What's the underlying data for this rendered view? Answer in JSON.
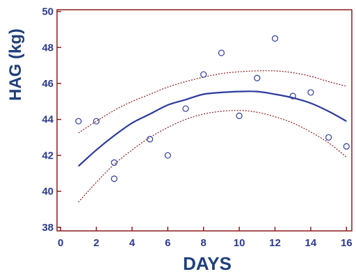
{
  "chart_data": {
    "type": "scatter",
    "xlabel": "DAYS",
    "ylabel": "HAG (kg)",
    "xlim": [
      -0.2,
      16.3
    ],
    "ylim": [
      37.8,
      50.1
    ],
    "xticks": [
      0,
      2,
      4,
      6,
      8,
      10,
      12,
      14,
      16
    ],
    "yticks": [
      38,
      40,
      42,
      44,
      46,
      48,
      50
    ],
    "grid": false,
    "colors": {
      "frame": "#8b1a1a",
      "points": "#2b3a9c",
      "fit": "#2b3a9c",
      "band": "#8b1a1a",
      "labels": "#2b3a8c",
      "title": "#1f3f7a"
    },
    "points": [
      {
        "x": 1,
        "y": 43.9
      },
      {
        "x": 2,
        "y": 43.9
      },
      {
        "x": 3,
        "y": 41.6
      },
      {
        "x": 3,
        "y": 40.7
      },
      {
        "x": 5,
        "y": 42.9
      },
      {
        "x": 6,
        "y": 42.0
      },
      {
        "x": 7,
        "y": 44.6
      },
      {
        "x": 8,
        "y": 46.5
      },
      {
        "x": 9,
        "y": 47.7
      },
      {
        "x": 10,
        "y": 44.2
      },
      {
        "x": 11,
        "y": 46.3
      },
      {
        "x": 12,
        "y": 48.5
      },
      {
        "x": 13,
        "y": 45.3
      },
      {
        "x": 14,
        "y": 45.5
      },
      {
        "x": 15,
        "y": 43.0
      },
      {
        "x": 16,
        "y": 42.5
      }
    ],
    "fit_line": {
      "x": [
        1,
        2,
        3,
        4,
        5,
        6,
        7,
        8,
        9,
        10,
        11,
        12,
        13,
        14,
        15,
        16
      ],
      "y": [
        41.4,
        42.3,
        43.1,
        43.8,
        44.3,
        44.8,
        45.1,
        45.4,
        45.5,
        45.55,
        45.55,
        45.4,
        45.2,
        44.9,
        44.45,
        43.9
      ]
    },
    "upper_band": {
      "x": [
        1,
        2,
        3,
        4,
        5,
        6,
        7,
        8,
        9,
        10,
        11,
        12,
        13,
        14,
        15,
        16
      ],
      "y": [
        43.25,
        43.9,
        44.5,
        45.0,
        45.4,
        45.8,
        46.1,
        46.35,
        46.55,
        46.65,
        46.7,
        46.7,
        46.6,
        46.4,
        46.1,
        45.85
      ]
    },
    "lower_band": {
      "x": [
        1,
        2,
        3,
        4,
        5,
        6,
        7,
        8,
        9,
        10,
        11,
        12,
        13,
        14,
        15,
        16
      ],
      "y": [
        39.4,
        40.5,
        41.5,
        42.3,
        43.0,
        43.55,
        44.0,
        44.3,
        44.45,
        44.5,
        44.4,
        44.15,
        43.8,
        43.3,
        42.7,
        41.9
      ]
    }
  }
}
